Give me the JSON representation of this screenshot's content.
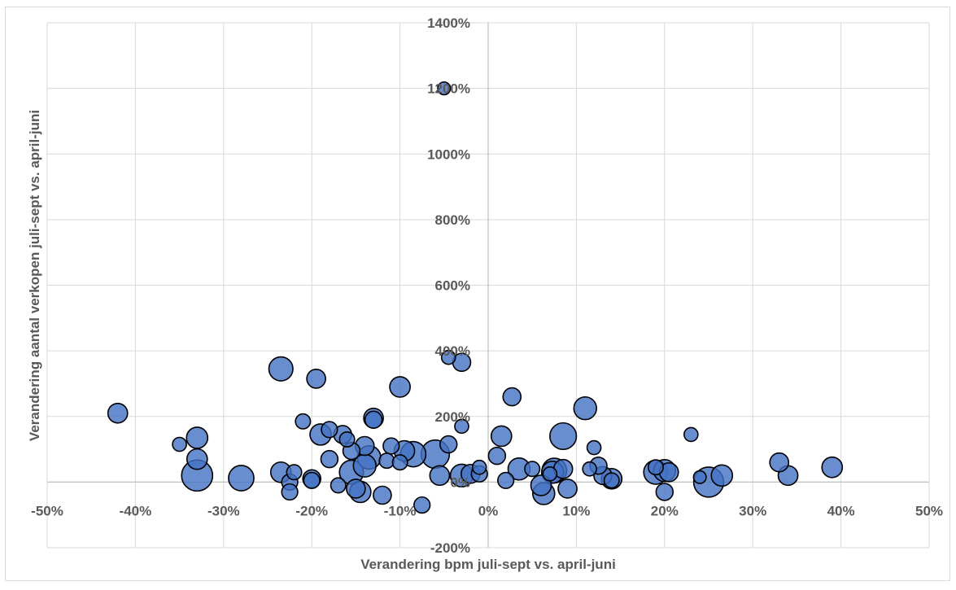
{
  "chart_data": {
    "type": "scatter",
    "subtype": "bubble",
    "title": "",
    "xlabel": "Verandering bpm juli-sept vs. april-juni",
    "ylabel": "Verandering aantal verkopen juli-sept vs. april-juni",
    "xlim": [
      -0.5,
      0.5
    ],
    "ylim": [
      -2,
      14
    ],
    "x_ticks": [
      "-50%",
      "-40%",
      "-30%",
      "-20%",
      "-10%",
      "0%",
      "10%",
      "20%",
      "30%",
      "40%",
      "50%"
    ],
    "y_ticks": [
      "-200%",
      "0%",
      "200%",
      "400%",
      "600%",
      "800%",
      "1000%",
      "1200%",
      "1400%"
    ],
    "grid": true,
    "legend": "none",
    "colors": {
      "bubble_fill": "#4472c4",
      "bubble_stroke": "#000000",
      "grid": "#d9d9d9",
      "text": "#595959"
    },
    "series": [
      {
        "points": [
          {
            "x": -0.05,
            "y": 12.0,
            "size": 0.5
          },
          {
            "x": -0.42,
            "y": 2.1,
            "size": 1.2
          },
          {
            "x": -0.35,
            "y": 1.15,
            "size": 0.6
          },
          {
            "x": -0.33,
            "y": 1.35,
            "size": 1.4
          },
          {
            "x": -0.33,
            "y": 0.7,
            "size": 1.3
          },
          {
            "x": -0.33,
            "y": 0.2,
            "size": 3.0
          },
          {
            "x": -0.28,
            "y": 0.12,
            "size": 2.0
          },
          {
            "x": -0.235,
            "y": 3.45,
            "size": 1.8
          },
          {
            "x": -0.235,
            "y": 0.3,
            "size": 1.3
          },
          {
            "x": -0.22,
            "y": 0.3,
            "size": 0.7
          },
          {
            "x": -0.225,
            "y": 0.0,
            "size": 0.8
          },
          {
            "x": -0.225,
            "y": -0.3,
            "size": 0.8
          },
          {
            "x": -0.21,
            "y": 1.85,
            "size": 0.7
          },
          {
            "x": -0.195,
            "y": 3.15,
            "size": 1.1
          },
          {
            "x": -0.19,
            "y": 1.45,
            "size": 1.4
          },
          {
            "x": -0.2,
            "y": 0.1,
            "size": 1.0
          },
          {
            "x": -0.2,
            "y": 0.05,
            "size": 0.8
          },
          {
            "x": -0.18,
            "y": 1.6,
            "size": 0.8
          },
          {
            "x": -0.18,
            "y": 0.7,
            "size": 0.9
          },
          {
            "x": -0.17,
            "y": -0.1,
            "size": 0.7
          },
          {
            "x": -0.165,
            "y": 1.45,
            "size": 1.0
          },
          {
            "x": -0.16,
            "y": 1.3,
            "size": 0.7
          },
          {
            "x": -0.155,
            "y": 0.95,
            "size": 0.9
          },
          {
            "x": -0.155,
            "y": 0.3,
            "size": 1.8
          },
          {
            "x": -0.15,
            "y": -0.2,
            "size": 1.1
          },
          {
            "x": -0.145,
            "y": -0.3,
            "size": 1.4
          },
          {
            "x": -0.14,
            "y": 1.1,
            "size": 1.1
          },
          {
            "x": -0.14,
            "y": 0.5,
            "size": 1.6
          },
          {
            "x": -0.135,
            "y": 0.75,
            "size": 1.7
          },
          {
            "x": -0.13,
            "y": 1.95,
            "size": 1.2
          },
          {
            "x": -0.13,
            "y": 1.9,
            "size": 0.9
          },
          {
            "x": -0.115,
            "y": 0.65,
            "size": 0.7
          },
          {
            "x": -0.12,
            "y": -0.4,
            "size": 1.0
          },
          {
            "x": -0.11,
            "y": 1.1,
            "size": 0.8
          },
          {
            "x": -0.1,
            "y": 2.9,
            "size": 1.3
          },
          {
            "x": -0.1,
            "y": 0.6,
            "size": 0.7
          },
          {
            "x": -0.095,
            "y": 0.95,
            "size": 1.3
          },
          {
            "x": -0.085,
            "y": 0.85,
            "size": 2.0
          },
          {
            "x": -0.075,
            "y": -0.7,
            "size": 0.8
          },
          {
            "x": -0.06,
            "y": 0.85,
            "size": 2.5
          },
          {
            "x": -0.055,
            "y": 0.2,
            "size": 1.2
          },
          {
            "x": -0.045,
            "y": 3.8,
            "size": 0.6
          },
          {
            "x": -0.045,
            "y": 1.15,
            "size": 0.9
          },
          {
            "x": -0.03,
            "y": 3.65,
            "size": 1.0
          },
          {
            "x": -0.03,
            "y": 1.7,
            "size": 0.6
          },
          {
            "x": -0.03,
            "y": 0.2,
            "size": 1.6
          },
          {
            "x": -0.02,
            "y": 0.25,
            "size": 1.1
          },
          {
            "x": -0.01,
            "y": 0.25,
            "size": 0.8
          },
          {
            "x": -0.01,
            "y": 0.45,
            "size": 0.6
          },
          {
            "x": 0.01,
            "y": 0.8,
            "size": 0.9
          },
          {
            "x": 0.015,
            "y": 1.4,
            "size": 1.3
          },
          {
            "x": 0.02,
            "y": 0.05,
            "size": 0.8
          },
          {
            "x": 0.027,
            "y": 2.6,
            "size": 1.0
          },
          {
            "x": 0.035,
            "y": 0.4,
            "size": 1.5
          },
          {
            "x": 0.05,
            "y": 0.4,
            "size": 0.7
          },
          {
            "x": 0.06,
            "y": -0.1,
            "size": 1.3
          },
          {
            "x": 0.063,
            "y": -0.35,
            "size": 1.5
          },
          {
            "x": 0.07,
            "y": 0.25,
            "size": 0.6
          },
          {
            "x": 0.073,
            "y": 0.3,
            "size": 1.5
          },
          {
            "x": 0.075,
            "y": 0.35,
            "size": 1.9
          },
          {
            "x": 0.085,
            "y": 0.4,
            "size": 1.1
          },
          {
            "x": 0.085,
            "y": 1.4,
            "size": 2.2
          },
          {
            "x": 0.09,
            "y": -0.2,
            "size": 1.1
          },
          {
            "x": 0.11,
            "y": 2.25,
            "size": 1.6
          },
          {
            "x": 0.115,
            "y": 0.4,
            "size": 0.6
          },
          {
            "x": 0.12,
            "y": 1.05,
            "size": 0.6
          },
          {
            "x": 0.125,
            "y": 0.5,
            "size": 0.9
          },
          {
            "x": 0.13,
            "y": 0.2,
            "size": 1.0
          },
          {
            "x": 0.14,
            "y": 0.1,
            "size": 1.3
          },
          {
            "x": 0.14,
            "y": 0.05,
            "size": 0.7
          },
          {
            "x": 0.19,
            "y": 0.45,
            "size": 0.7
          },
          {
            "x": 0.19,
            "y": 0.3,
            "size": 1.8
          },
          {
            "x": 0.2,
            "y": 0.35,
            "size": 1.5
          },
          {
            "x": 0.2,
            "y": -0.3,
            "size": 0.9
          },
          {
            "x": 0.205,
            "y": 0.3,
            "size": 1.1
          },
          {
            "x": 0.23,
            "y": 1.45,
            "size": 0.6
          },
          {
            "x": 0.24,
            "y": 0.15,
            "size": 0.5
          },
          {
            "x": 0.25,
            "y": 0.0,
            "size": 2.8
          },
          {
            "x": 0.265,
            "y": 0.2,
            "size": 1.4
          },
          {
            "x": 0.33,
            "y": 0.6,
            "size": 1.1
          },
          {
            "x": 0.34,
            "y": 0.2,
            "size": 1.2
          },
          {
            "x": 0.39,
            "y": 0.45,
            "size": 1.3
          }
        ]
      }
    ]
  }
}
